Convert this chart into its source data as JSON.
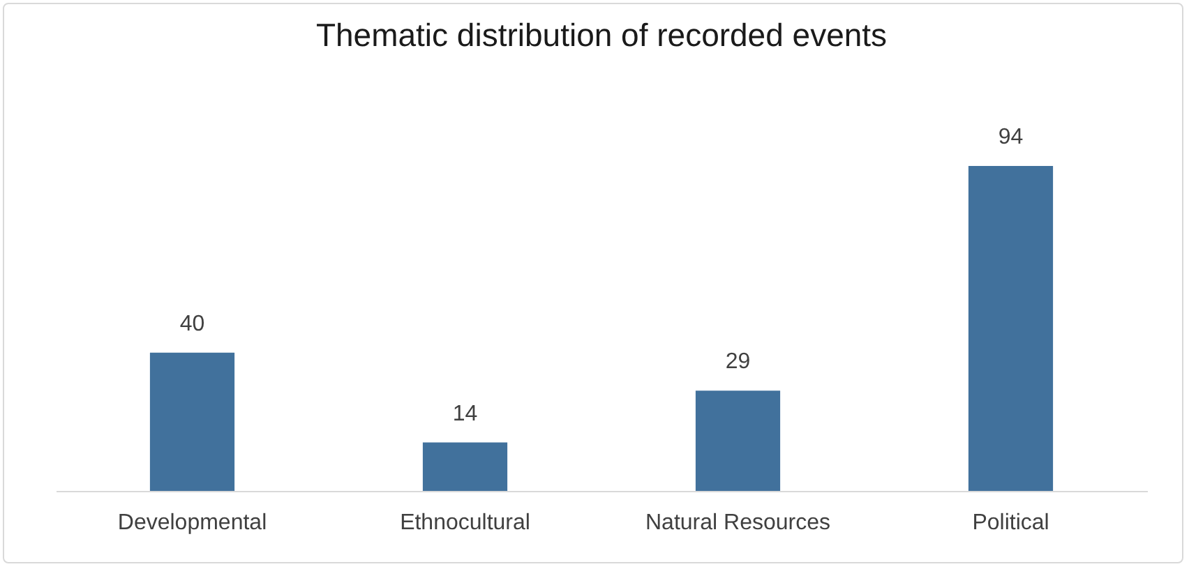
{
  "chart_data": {
    "type": "bar",
    "title": "Thematic distribution of recorded events",
    "categories": [
      "Developmental",
      "Ethnocultural",
      "Natural Resources",
      "Political"
    ],
    "values": [
      40,
      14,
      29,
      94
    ],
    "color": "#41719c",
    "data_labels": true,
    "tick_labels": "x"
  }
}
